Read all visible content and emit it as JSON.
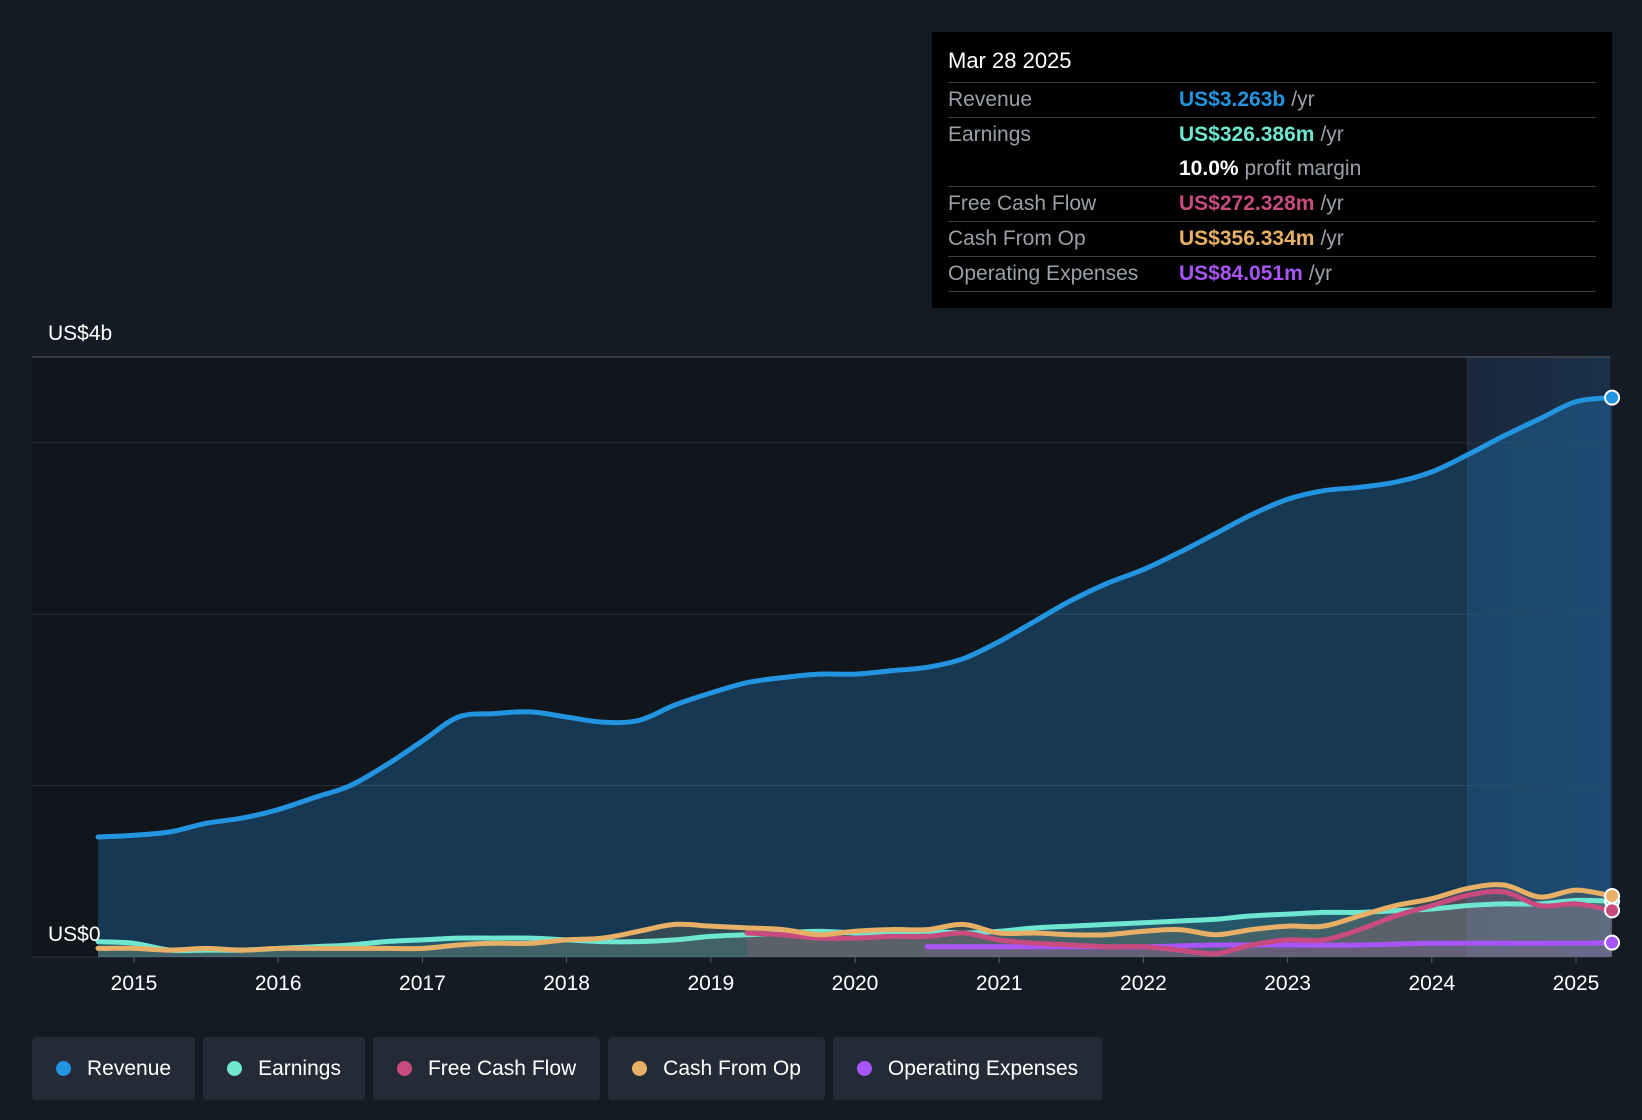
{
  "colors": {
    "revenue": "#2394df",
    "earnings": "#6ee6d0",
    "fcf": "#c84b80",
    "cfo": "#e8b066",
    "opex": "#a855f7",
    "background": "#151b25",
    "plot_background": "#11151c",
    "grid": "#2d333c"
  },
  "tooltip": {
    "date": "Mar 28 2025",
    "rows": [
      {
        "label": "Revenue",
        "value": "US$3.263b",
        "unit": "/yr",
        "color": "#2394df"
      },
      {
        "label": "Earnings",
        "value": "US$326.386m",
        "unit": "/yr",
        "color": "#6ee6d0"
      },
      {
        "label": "",
        "value": "10.0%",
        "unit": "profit margin",
        "color": "#ffffff"
      },
      {
        "label": "Free Cash Flow",
        "value": "US$272.328m",
        "unit": "/yr",
        "color": "#c84b80"
      },
      {
        "label": "Cash From Op",
        "value": "US$356.334m",
        "unit": "/yr",
        "color": "#e8b066"
      },
      {
        "label": "Operating Expenses",
        "value": "US$84.051m",
        "unit": "/yr",
        "color": "#a855f7"
      }
    ]
  },
  "legend": [
    {
      "label": "Revenue",
      "color": "#2394df"
    },
    {
      "label": "Earnings",
      "color": "#6ee6d0"
    },
    {
      "label": "Free Cash Flow",
      "color": "#c84b80"
    },
    {
      "label": "Cash From Op",
      "color": "#e8b066"
    },
    {
      "label": "Operating Expenses",
      "color": "#a855f7"
    }
  ],
  "chart_data": {
    "type": "line",
    "title": "",
    "xlabel": "",
    "ylabel": "",
    "y_top_label": "US$4b",
    "y_bottom_label": "US$0",
    "ylim": [
      -0.0,
      3.5
    ],
    "xlim": [
      2014.5,
      2025.25
    ],
    "x_ticks": [
      2015,
      2016,
      2017,
      2018,
      2019,
      2020,
      2021,
      2022,
      2023,
      2024,
      2025
    ],
    "x_tick_labels": [
      "2015",
      "2016",
      "2017",
      "2018",
      "2019",
      "2020",
      "2021",
      "2022",
      "2023",
      "2024",
      "2025"
    ],
    "y_gridlines": [
      0,
      1,
      2,
      3,
      3.5
    ],
    "highlight_region": [
      2024.25,
      2025.25
    ],
    "series": [
      {
        "name": "Revenue",
        "color": "#2394df",
        "x": [
          2014.75,
          2015.0,
          2015.25,
          2015.5,
          2015.75,
          2016.0,
          2016.25,
          2016.5,
          2016.75,
          2017.0,
          2017.25,
          2017.5,
          2017.75,
          2018.0,
          2018.25,
          2018.5,
          2018.75,
          2019.0,
          2019.25,
          2019.5,
          2019.75,
          2020.0,
          2020.25,
          2020.5,
          2020.75,
          2021.0,
          2021.25,
          2021.5,
          2021.75,
          2022.0,
          2022.25,
          2022.5,
          2022.75,
          2023.0,
          2023.25,
          2023.5,
          2023.75,
          2024.0,
          2024.25,
          2024.5,
          2024.75,
          2025.0,
          2025.25
        ],
        "values": [
          0.7,
          0.71,
          0.73,
          0.78,
          0.81,
          0.86,
          0.93,
          1.0,
          1.12,
          1.26,
          1.4,
          1.42,
          1.43,
          1.4,
          1.37,
          1.38,
          1.47,
          1.54,
          1.6,
          1.63,
          1.65,
          1.65,
          1.67,
          1.69,
          1.74,
          1.84,
          1.96,
          2.08,
          2.18,
          2.26,
          2.36,
          2.47,
          2.58,
          2.67,
          2.72,
          2.74,
          2.77,
          2.83,
          2.93,
          3.04,
          3.14,
          3.24,
          3.263
        ]
      },
      {
        "name": "Earnings",
        "color": "#6ee6d0",
        "x": [
          2014.75,
          2015.0,
          2015.25,
          2015.5,
          2015.75,
          2016.0,
          2016.25,
          2016.5,
          2016.75,
          2017.0,
          2017.25,
          2017.5,
          2017.75,
          2018.0,
          2018.25,
          2018.5,
          2018.75,
          2019.0,
          2019.25,
          2019.5,
          2019.75,
          2020.0,
          2020.25,
          2020.5,
          2020.75,
          2021.0,
          2021.25,
          2021.5,
          2021.75,
          2022.0,
          2022.25,
          2022.5,
          2022.75,
          2023.0,
          2023.25,
          2023.5,
          2023.75,
          2024.0,
          2024.25,
          2024.5,
          2024.75,
          2025.0,
          2025.25
        ],
        "values": [
          0.09,
          0.08,
          0.04,
          0.04,
          0.04,
          0.05,
          0.06,
          0.07,
          0.09,
          0.1,
          0.11,
          0.11,
          0.11,
          0.1,
          0.09,
          0.09,
          0.1,
          0.12,
          0.13,
          0.14,
          0.15,
          0.14,
          0.14,
          0.15,
          0.14,
          0.15,
          0.17,
          0.18,
          0.19,
          0.2,
          0.21,
          0.22,
          0.24,
          0.25,
          0.26,
          0.26,
          0.27,
          0.28,
          0.3,
          0.31,
          0.31,
          0.33,
          0.326
        ]
      },
      {
        "name": "Free Cash Flow",
        "color": "#c84b80",
        "x": [
          2019.25,
          2019.5,
          2019.75,
          2020.0,
          2020.25,
          2020.5,
          2020.75,
          2021.0,
          2021.25,
          2021.5,
          2021.75,
          2022.0,
          2022.25,
          2022.5,
          2022.75,
          2023.0,
          2023.25,
          2023.5,
          2023.75,
          2024.0,
          2024.25,
          2024.5,
          2024.75,
          2025.0,
          2025.25
        ],
        "values": [
          0.14,
          0.13,
          0.11,
          0.11,
          0.12,
          0.12,
          0.14,
          0.1,
          0.08,
          0.07,
          0.06,
          0.06,
          0.04,
          0.02,
          0.07,
          0.1,
          0.1,
          0.16,
          0.24,
          0.3,
          0.36,
          0.38,
          0.3,
          0.31,
          0.272
        ]
      },
      {
        "name": "Cash From Op",
        "color": "#e8b066",
        "x": [
          2014.75,
          2015.0,
          2015.25,
          2015.5,
          2015.75,
          2016.0,
          2016.25,
          2016.5,
          2016.75,
          2017.0,
          2017.25,
          2017.5,
          2017.75,
          2018.0,
          2018.25,
          2018.5,
          2018.75,
          2019.0,
          2019.25,
          2019.5,
          2019.75,
          2020.0,
          2020.25,
          2020.5,
          2020.75,
          2021.0,
          2021.25,
          2021.5,
          2021.75,
          2022.0,
          2022.25,
          2022.5,
          2022.75,
          2023.0,
          2023.25,
          2023.5,
          2023.75,
          2024.0,
          2024.25,
          2024.5,
          2024.75,
          2025.0,
          2025.25
        ],
        "values": [
          0.05,
          0.05,
          0.04,
          0.05,
          0.04,
          0.05,
          0.05,
          0.05,
          0.05,
          0.05,
          0.07,
          0.08,
          0.08,
          0.1,
          0.11,
          0.15,
          0.19,
          0.18,
          0.17,
          0.16,
          0.13,
          0.15,
          0.16,
          0.16,
          0.19,
          0.14,
          0.14,
          0.13,
          0.13,
          0.15,
          0.16,
          0.13,
          0.16,
          0.18,
          0.18,
          0.24,
          0.3,
          0.34,
          0.4,
          0.42,
          0.35,
          0.39,
          0.356
        ]
      },
      {
        "name": "Operating Expenses",
        "color": "#a855f7",
        "x": [
          2020.5,
          2021.0,
          2021.5,
          2022.0,
          2022.5,
          2023.0,
          2023.5,
          2024.0,
          2024.5,
          2025.0,
          2025.25
        ],
        "values": [
          0.06,
          0.06,
          0.06,
          0.06,
          0.07,
          0.07,
          0.07,
          0.08,
          0.08,
          0.08,
          0.084
        ]
      }
    ]
  }
}
